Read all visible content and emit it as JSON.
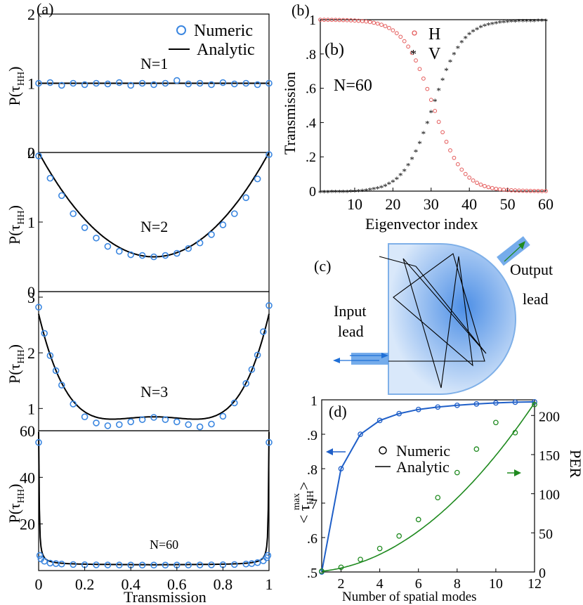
{
  "panel_labels": {
    "a": "(a)",
    "b": "(b)",
    "c": "(c)",
    "d": "(d)"
  },
  "colors": {
    "numeric_blue": "#3a86e0",
    "analytic": "#000000",
    "h_red": "#e45a5a",
    "v_black": "#222222",
    "per_green": "#1f8a1f",
    "d_blue": "#1f5fc8",
    "cavity_fill": "#b9d4f3",
    "cavity_edge": "#7fb0e8",
    "lead_fill": "#5d9ee8"
  },
  "chart_data": [
    {
      "id": "a",
      "type": "line",
      "legend": [
        "Numeric",
        "Analytic"
      ],
      "legend_position": "top-right",
      "xlabel": "Transmission",
      "ylabel": "P(τHH)",
      "ylabel_main": "P(τ",
      "ylabel_sub": "HH",
      "ylabel_close": ")",
      "xticks": [
        "0",
        "0.2",
        "0.4",
        "0.6",
        "0.8",
        "1"
      ],
      "xlim": [
        0,
        1
      ],
      "subplots": [
        {
          "label": "N=1",
          "ylim": [
            0,
            2
          ],
          "yticks": [
            "0",
            "1",
            "2"
          ],
          "x": [
            0.0,
            0.05,
            0.1,
            0.15,
            0.2,
            0.25,
            0.3,
            0.35,
            0.4,
            0.45,
            0.5,
            0.55,
            0.6,
            0.65,
            0.7,
            0.75,
            0.8,
            0.85,
            0.9,
            0.95,
            1.0
          ],
          "numeric": [
            1.0,
            1.01,
            0.97,
            1.0,
            0.98,
            1.0,
            0.99,
            1.01,
            0.97,
            1.0,
            0.98,
            1.0,
            1.04,
            0.99,
            1.0,
            0.98,
            1.01,
            0.99,
            1.0,
            0.98,
            1.0
          ],
          "analytic_kind": "flat"
        },
        {
          "label": "N=2",
          "ylim": [
            0,
            2
          ],
          "yticks": [
            "0",
            "1",
            "2"
          ],
          "x": [
            0.0,
            0.05,
            0.1,
            0.15,
            0.2,
            0.25,
            0.3,
            0.35,
            0.4,
            0.45,
            0.5,
            0.55,
            0.6,
            0.65,
            0.7,
            0.75,
            0.8,
            0.85,
            0.9,
            0.95,
            1.0
          ],
          "numeric": [
            1.95,
            1.63,
            1.38,
            1.12,
            0.92,
            0.77,
            0.65,
            0.58,
            0.53,
            0.52,
            0.5,
            0.52,
            0.55,
            0.62,
            0.7,
            0.82,
            0.96,
            1.12,
            1.35,
            1.62,
            1.97
          ],
          "analytic_kind": "n2"
        },
        {
          "label": "N=3",
          "ylim": [
            0.6,
            3.1
          ],
          "yticks": [
            "1",
            "2",
            "3"
          ],
          "x": [
            0.0,
            0.025,
            0.05,
            0.075,
            0.1,
            0.15,
            0.2,
            0.25,
            0.3,
            0.35,
            0.4,
            0.45,
            0.5,
            0.55,
            0.6,
            0.65,
            0.7,
            0.75,
            0.8,
            0.85,
            0.9,
            0.925,
            0.95,
            0.975,
            1.0
          ],
          "numeric": [
            2.82,
            2.35,
            1.95,
            1.68,
            1.42,
            1.08,
            0.85,
            0.74,
            0.69,
            0.71,
            0.76,
            0.8,
            0.84,
            0.8,
            0.76,
            0.71,
            0.67,
            0.72,
            0.86,
            1.1,
            1.45,
            1.7,
            1.96,
            2.38,
            2.85
          ],
          "analytic_kind": "n3"
        },
        {
          "label": "N=60",
          "ylim": [
            0,
            60
          ],
          "yticks": [
            "20",
            "40",
            "60"
          ],
          "x": [
            0.0,
            0.005,
            0.01,
            0.025,
            0.05,
            0.075,
            0.1,
            0.15,
            0.2,
            0.25,
            0.3,
            0.35,
            0.4,
            0.45,
            0.5,
            0.55,
            0.6,
            0.65,
            0.7,
            0.75,
            0.8,
            0.85,
            0.9,
            0.925,
            0.95,
            0.975,
            0.99,
            0.995,
            1.0
          ],
          "numeric": [
            55,
            6.5,
            5.0,
            4.0,
            3.2,
            3.0,
            2.8,
            2.6,
            2.5,
            2.45,
            2.4,
            2.38,
            2.36,
            2.35,
            2.35,
            2.35,
            2.36,
            2.38,
            2.4,
            2.45,
            2.5,
            2.6,
            2.8,
            3.0,
            3.4,
            4.2,
            5.5,
            6.5,
            55
          ],
          "analytic_kind": "n60"
        }
      ]
    },
    {
      "id": "b",
      "type": "scatter",
      "label_text": "N=60",
      "xlabel": "Eigenvector index",
      "ylabel": "Transmission",
      "xlim": [
        1,
        60
      ],
      "ylim": [
        0,
        1
      ],
      "xticks": [
        "10",
        "20",
        "30",
        "40",
        "50",
        "60"
      ],
      "yticks": [
        "0",
        ".2",
        ".4",
        ".6",
        ".8",
        "1"
      ],
      "legend_position": "top-right",
      "series": [
        {
          "name": "H",
          "marker": "open-circle",
          "description": "sigmoid decreasing from 1 to 0, midpoint ~ index 30"
        },
        {
          "name": "V",
          "marker": "star",
          "description": "sigmoid increasing from 0 to 1, midpoint ~ index 30"
        }
      ],
      "x_start": 1,
      "x_end": 60,
      "midpoint": 30.5,
      "width": 8.5
    },
    {
      "id": "c",
      "type": "diagram",
      "labels": {
        "input": [
          "Input",
          "lead"
        ],
        "output": [
          "Output",
          "lead"
        ]
      }
    },
    {
      "id": "d",
      "type": "line",
      "xlabel": "Number of spatial modes",
      "ylabel_left_main": "< τ",
      "ylabel_left_sub": "HH",
      "ylabel_left_sup": "max",
      "ylabel_left_close": ">",
      "ylabel_right": "PER",
      "xlim": [
        1,
        12
      ],
      "ylim_left": [
        0.5,
        1
      ],
      "ylim_right": [
        0,
        220
      ],
      "xticks": [
        "2",
        "4",
        "6",
        "8",
        "10",
        "12"
      ],
      "yticks_left": [
        ".5",
        ".6",
        ".7",
        ".8",
        ".9",
        "1"
      ],
      "yticks_right": [
        "0",
        "50",
        "100",
        "150",
        "200"
      ],
      "legend": [
        "Numeric",
        "Analytic"
      ],
      "legend_position": "center",
      "series": [
        {
          "name": "<τHH max>",
          "axis": "left",
          "x": [
            1,
            2,
            3,
            4,
            5,
            6,
            7,
            8,
            9,
            10,
            11,
            12
          ],
          "values": [
            0.5,
            0.8,
            0.9,
            0.94,
            0.96,
            0.972,
            0.979,
            0.984,
            0.988,
            0.991,
            0.993,
            0.994
          ]
        },
        {
          "name": "PER",
          "axis": "right",
          "x": [
            1,
            2,
            3,
            4,
            5,
            6,
            7,
            8,
            9,
            10,
            11,
            12
          ],
          "values": [
            1,
            6,
            16,
            30,
            46,
            67,
            95,
            127,
            157,
            191,
            178,
            214
          ]
        }
      ]
    }
  ]
}
